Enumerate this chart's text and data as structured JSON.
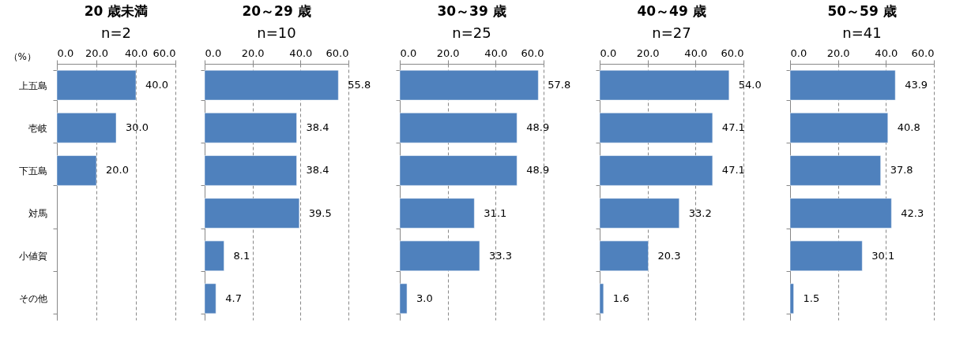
{
  "chart_data": [
    {
      "type": "bar",
      "orientation": "horizontal",
      "title": "20 歳未満",
      "subtitle": "n=2",
      "xlabel": "（%）",
      "categories": [
        "上五島",
        "壱岐",
        "下五島",
        "対馬",
        "小値賀",
        "その他"
      ],
      "values": [
        40.0,
        30.0,
        20.0,
        null,
        null,
        null
      ],
      "value_labels": [
        "40.0",
        "30.0",
        "20.0",
        null,
        null,
        null
      ],
      "color": "#4f81bd",
      "xlim": [
        0,
        60
      ],
      "xticks": [
        {
          "value": 0,
          "label": "0.0"
        },
        {
          "value": 20,
          "label": "20.0"
        },
        {
          "value": 40,
          "label": "40.0"
        },
        {
          "value": 60,
          "label": "60.0"
        }
      ],
      "grid": "x"
    },
    {
      "type": "bar",
      "orientation": "horizontal",
      "title": "20～29 歳",
      "subtitle": "n=10",
      "categories": [
        null,
        null,
        null,
        null,
        null,
        null
      ],
      "values": [
        55.8,
        38.4,
        38.4,
        39.5,
        8.1,
        4.7
      ],
      "value_labels": [
        "55.8",
        "38.4",
        "38.4",
        "39.5",
        "8.1",
        "4.7"
      ],
      "color": "#4f81bd",
      "xlim": [
        0,
        60
      ],
      "xticks": [
        {
          "value": 0,
          "label": "0.0"
        },
        {
          "value": 20,
          "label": "20.0"
        },
        {
          "value": 40,
          "label": "40.0"
        },
        {
          "value": 60,
          "label": "60.0"
        }
      ],
      "grid": "x",
      "tick_labels": "x"
    },
    {
      "type": "bar",
      "orientation": "horizontal",
      "title": "30～39 歳",
      "subtitle": "n=25",
      "categories": [
        null,
        null,
        null,
        null,
        null,
        null
      ],
      "values": [
        57.8,
        48.9,
        48.9,
        31.1,
        33.3,
        3.0
      ],
      "value_labels": [
        "57.8",
        "48.9",
        "48.9",
        "31.1",
        "33.3",
        "3.0"
      ],
      "color": "#4f81bd",
      "xlim": [
        0,
        60
      ],
      "xticks": [
        {
          "value": 0,
          "label": "0.0"
        },
        {
          "value": 20,
          "label": "20.0"
        },
        {
          "value": 40,
          "label": "40.0"
        },
        {
          "value": 60,
          "label": "60.0"
        }
      ],
      "grid": "x",
      "tick_labels": "x"
    },
    {
      "type": "bar",
      "orientation": "horizontal",
      "title": "40～49 歳",
      "subtitle": "n=27",
      "categories": [
        null,
        null,
        null,
        null,
        null,
        null
      ],
      "values": [
        54.0,
        47.1,
        47.1,
        33.2,
        20.3,
        1.6
      ],
      "value_labels": [
        "54.0",
        "47.1",
        "47.1",
        "33.2",
        "20.3",
        "1.6"
      ],
      "color": "#4f81bd",
      "xlim": [
        0,
        60
      ],
      "xticks": [
        {
          "value": 0,
          "label": "0.0"
        },
        {
          "value": 20,
          "label": "20.0"
        },
        {
          "value": 40,
          "label": "40.0"
        },
        {
          "value": 60,
          "label": "60.0"
        }
      ],
      "grid": "x",
      "tick_labels": "x"
    },
    {
      "type": "bar",
      "orientation": "horizontal",
      "title": "50～59 歳",
      "subtitle": "n=41",
      "categories": [
        null,
        null,
        null,
        null,
        null,
        null
      ],
      "values": [
        43.9,
        40.8,
        37.8,
        42.3,
        30.1,
        1.5
      ],
      "value_labels": [
        "43.9",
        "40.8",
        "37.8",
        "42.3",
        "30.1",
        "1.5"
      ],
      "color": "#4f81bd",
      "xlim": [
        0,
        60
      ],
      "xticks": [
        {
          "value": 0,
          "label": "0.0"
        },
        {
          "value": 20,
          "label": "20.0"
        },
        {
          "value": 40,
          "label": "40.0"
        },
        {
          "value": 60,
          "label": "60.0"
        }
      ],
      "grid": "x",
      "tick_labels": "x"
    }
  ]
}
